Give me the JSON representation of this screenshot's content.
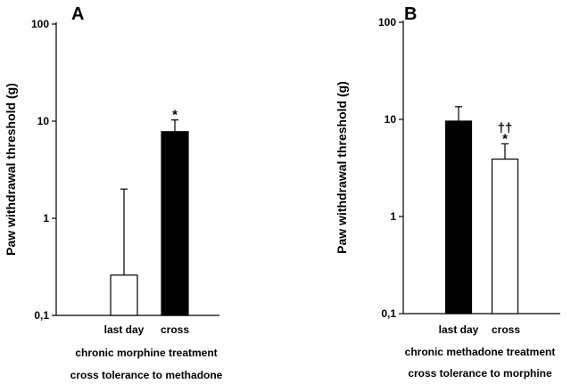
{
  "chart_data": [
    {
      "type": "bar",
      "panel": "A",
      "ylabel": "Paw withdrawal threshold (g)",
      "yscale": "log",
      "ylim": [
        0.1,
        100
      ],
      "yticks": [
        {
          "value": 0.1,
          "label": "0,1"
        },
        {
          "value": 1,
          "label": "1"
        },
        {
          "value": 10,
          "label": "10"
        },
        {
          "value": 100,
          "label": "100"
        }
      ],
      "categories": [
        "last day",
        "cross"
      ],
      "values": [
        0.26,
        7.8
      ],
      "error_upper": [
        2.0,
        10.3
      ],
      "bar_colors": [
        "#ffffff",
        "#000000"
      ],
      "significance": [
        "",
        "*"
      ],
      "captions": [
        "chronic morphine treatment",
        "cross tolerance to methadone"
      ]
    },
    {
      "type": "bar",
      "panel": "B",
      "ylabel": "Paw withdrawal threshold (g)",
      "yscale": "log",
      "ylim": [
        0.1,
        100
      ],
      "yticks": [
        {
          "value": 0.1,
          "label": "0,1"
        },
        {
          "value": 1,
          "label": "1"
        },
        {
          "value": 10,
          "label": "10"
        },
        {
          "value": 100,
          "label": "100"
        }
      ],
      "categories": [
        "last day",
        "cross"
      ],
      "values": [
        9.6,
        3.9
      ],
      "error_upper": [
        13.5,
        5.6
      ],
      "bar_colors": [
        "#000000",
        "#ffffff"
      ],
      "significance": [
        "",
        "*"
      ],
      "significance_extra": [
        "",
        "††"
      ],
      "captions": [
        "chronic methadone treatment",
        "cross tolerance to morphine"
      ]
    }
  ]
}
